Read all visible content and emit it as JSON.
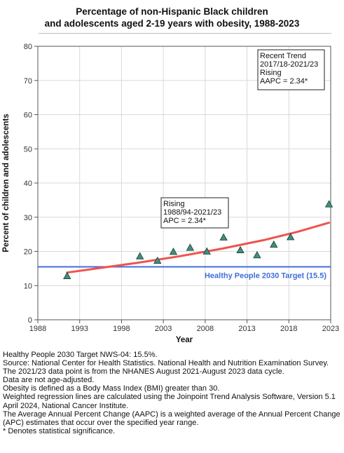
{
  "title": {
    "line1": "Percentage of non-Hispanic Black children",
    "line2": "and adolescents aged 2-19 years with obesity, 1988-2023"
  },
  "colors": {
    "trend_line": "#ef5350",
    "target_line": "#3f6fd8",
    "target_text": "#3f6fd8",
    "marker_fill": "#3f8f7f",
    "marker_stroke": "#1c3d36",
    "grid": "#d9d9d9"
  },
  "chart_data": {
    "type": "scatter",
    "xlabel": "Year",
    "ylabel": "Percent of children and adolescents",
    "xlim": [
      1988,
      2023
    ],
    "ylim": [
      0,
      80
    ],
    "x_ticks": [
      "1988",
      "1993",
      "1998",
      "2003",
      "2008",
      "2013",
      "2018",
      "2023"
    ],
    "y_ticks": [
      "0",
      "10",
      "20",
      "30",
      "40",
      "50",
      "60",
      "70",
      "80"
    ],
    "grid": true,
    "series": [
      {
        "marker": "triangle",
        "x": [
          1991.5,
          2000.2,
          2002.3,
          2004.2,
          2006.2,
          2008.2,
          2010.2,
          2012.2,
          2014.2,
          2016.2,
          2018.2,
          2022.8
        ],
        "y": [
          12.8,
          18.6,
          17.3,
          19.9,
          21.1,
          20.0,
          24.1,
          20.4,
          18.9,
          22.0,
          24.2,
          33.8
        ]
      }
    ],
    "trend_line": {
      "x": [
        1991.5,
        1995,
        2000,
        2005,
        2010,
        2015,
        2019,
        2022.8
      ],
      "y": [
        13.8,
        15.0,
        16.7,
        18.6,
        20.8,
        23.3,
        25.7,
        28.4
      ]
    },
    "target": {
      "value": 15.5,
      "label": "Healthy People 2030 Target (15.5)"
    },
    "annotations": [
      {
        "lines": [
          "Recent Trend",
          "2017/18-2021/23",
          "Rising",
          "AAPC =  2.34*"
        ]
      },
      {
        "lines": [
          "Rising",
          "1988/94-2021/23",
          "APC =  2.34*"
        ]
      }
    ]
  },
  "notes": [
    "Healthy People 2030 Target NWS-04: 15.5%.",
    "Source: National Center for Health Statistics. National Health and Nutrition Examination Survey.",
    "The 2021/23 data point is from the NHANES August 2021-August 2023 data cycle.",
    "Data are not age-adjusted.",
    "Obesity is defined as a Body Mass Index (BMI) greater than 30.",
    "Weighted regression lines are calculated using the Joinpoint Trend Analysis Software, Version 5.1 April 2024, National Cancer Institute.",
    "The Average Annual Percent Change (AAPC) is a weighted average of the Annual Percent Change (APC) estimates that occur over the specified year range.",
    "* Denotes statistical significance."
  ]
}
